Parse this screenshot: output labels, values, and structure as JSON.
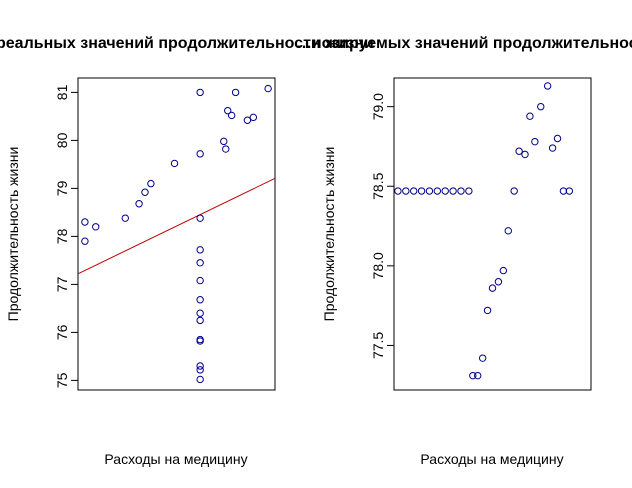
{
  "chart_data": [
    {
      "type": "scatter",
      "title": "…реальных значений продолжительности жизни",
      "xlabel": "Расходы на медицину",
      "ylabel": "Продолжительность жизни",
      "xlim": [
        0,
        100
      ],
      "ylim": [
        74.8,
        81.3
      ],
      "yticks": [
        "75",
        "76",
        "77",
        "78",
        "79",
        "80",
        "81"
      ],
      "x_tick_labels_shown": false,
      "grid": false,
      "point_color": "#00008b",
      "line_color": "#c00000",
      "regression_line": {
        "intercept": 77.22,
        "slope": 0.0199
      },
      "points": [
        {
          "x": 3.5,
          "y": 78.3
        },
        {
          "x": 3.5,
          "y": 77.9
        },
        {
          "x": 9,
          "y": 78.2
        },
        {
          "x": 24,
          "y": 78.38
        },
        {
          "x": 31,
          "y": 78.68
        },
        {
          "x": 34,
          "y": 78.92
        },
        {
          "x": 37,
          "y": 79.1
        },
        {
          "x": 49,
          "y": 79.52
        },
        {
          "x": 62,
          "y": 81.0
        },
        {
          "x": 62,
          "y": 79.72
        },
        {
          "x": 62,
          "y": 78.38
        },
        {
          "x": 62,
          "y": 77.72
        },
        {
          "x": 62,
          "y": 77.45
        },
        {
          "x": 62,
          "y": 77.08
        },
        {
          "x": 62,
          "y": 76.68
        },
        {
          "x": 62,
          "y": 76.4
        },
        {
          "x": 62,
          "y": 76.25
        },
        {
          "x": 62,
          "y": 75.85
        },
        {
          "x": 62,
          "y": 75.82
        },
        {
          "x": 62,
          "y": 75.3
        },
        {
          "x": 62,
          "y": 75.22
        },
        {
          "x": 62,
          "y": 75.02
        },
        {
          "x": 74,
          "y": 79.98
        },
        {
          "x": 75,
          "y": 79.82
        },
        {
          "x": 76,
          "y": 80.62
        },
        {
          "x": 78,
          "y": 80.52
        },
        {
          "x": 80,
          "y": 81.0
        },
        {
          "x": 86,
          "y": 80.42
        },
        {
          "x": 89,
          "y": 80.48
        },
        {
          "x": 96.5,
          "y": 81.08
        }
      ]
    },
    {
      "type": "scatter",
      "title": "…нозируемых значений продолжительности жизни",
      "xlabel": "Расходы на медицину",
      "ylabel": "Продолжительность жизни",
      "xlim": [
        0,
        100
      ],
      "ylim": [
        77.22,
        79.18
      ],
      "yticks": [
        "77.5",
        "78.0",
        "78.5",
        "79.0"
      ],
      "x_tick_labels_shown": false,
      "grid": false,
      "point_color": "#00008b",
      "points": [
        {
          "x": 2,
          "y": 78.47
        },
        {
          "x": 6,
          "y": 78.47
        },
        {
          "x": 10,
          "y": 78.47
        },
        {
          "x": 14,
          "y": 78.47
        },
        {
          "x": 18,
          "y": 78.47
        },
        {
          "x": 22,
          "y": 78.47
        },
        {
          "x": 26,
          "y": 78.47
        },
        {
          "x": 30,
          "y": 78.47
        },
        {
          "x": 34,
          "y": 78.47
        },
        {
          "x": 38,
          "y": 78.47
        },
        {
          "x": 40,
          "y": 77.31
        },
        {
          "x": 42.5,
          "y": 77.31
        },
        {
          "x": 45,
          "y": 77.42
        },
        {
          "x": 47.5,
          "y": 77.72
        },
        {
          "x": 50,
          "y": 77.86
        },
        {
          "x": 53,
          "y": 77.9
        },
        {
          "x": 55.5,
          "y": 77.97
        },
        {
          "x": 58,
          "y": 78.22
        },
        {
          "x": 61,
          "y": 78.47
        },
        {
          "x": 63.5,
          "y": 78.72
        },
        {
          "x": 66.5,
          "y": 78.7
        },
        {
          "x": 69,
          "y": 78.94
        },
        {
          "x": 71.5,
          "y": 78.78
        },
        {
          "x": 74.5,
          "y": 79.0
        },
        {
          "x": 78,
          "y": 79.13
        },
        {
          "x": 80.5,
          "y": 78.74
        },
        {
          "x": 83,
          "y": 78.8
        },
        {
          "x": 86,
          "y": 78.47
        },
        {
          "x": 89,
          "y": 78.47
        }
      ]
    }
  ]
}
